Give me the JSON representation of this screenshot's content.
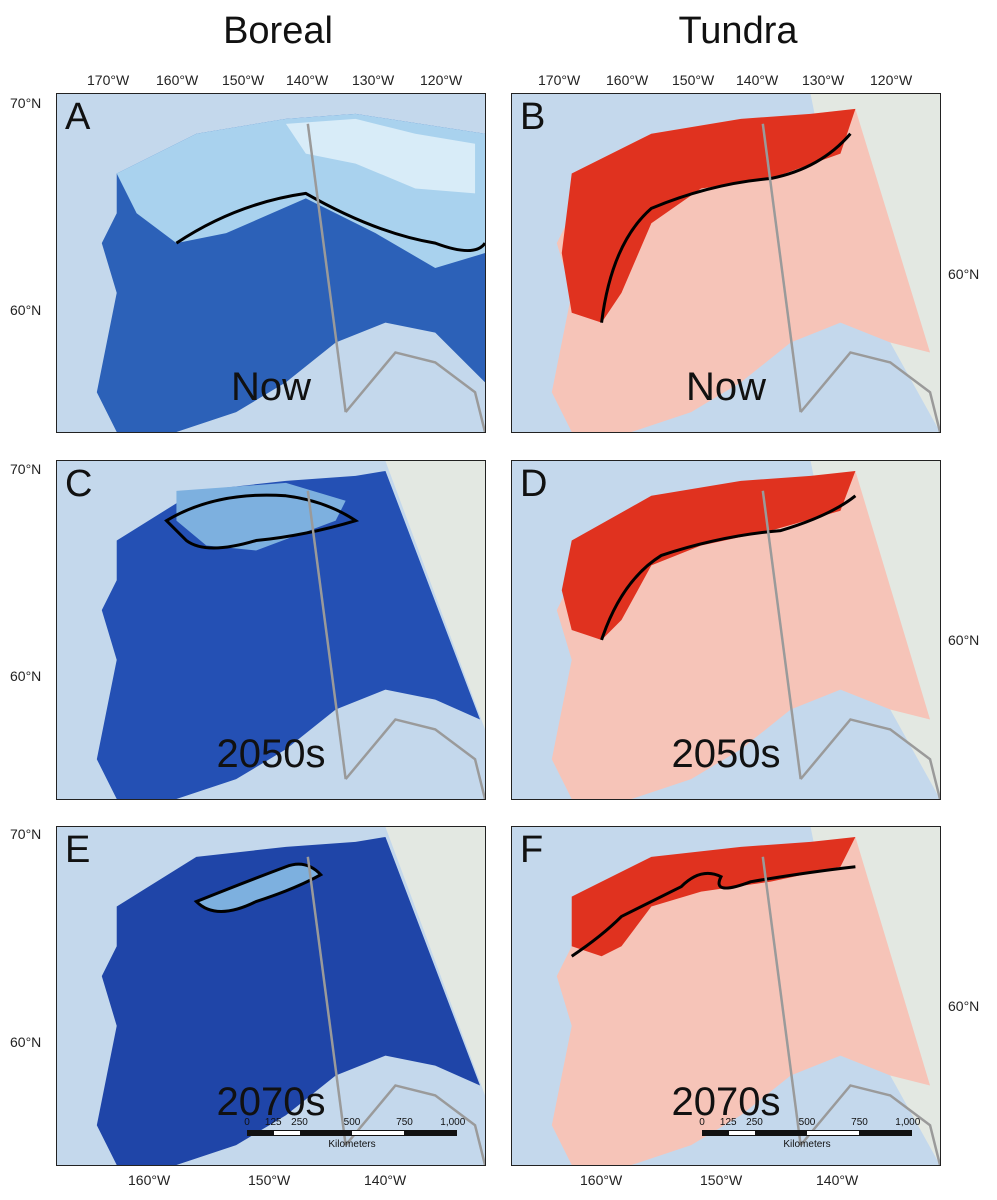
{
  "columns": {
    "boreal": "Boreal",
    "tundra": "Tundra"
  },
  "panels": {
    "A": {
      "letter": "A",
      "period": "Now"
    },
    "B": {
      "letter": "B",
      "period": "Now"
    },
    "C": {
      "letter": "C",
      "period": "2050s"
    },
    "D": {
      "letter": "D",
      "period": "2050s"
    },
    "E": {
      "letter": "E",
      "period": "2070s"
    },
    "F": {
      "letter": "F",
      "period": "2070s"
    }
  },
  "top_lon_ticks": [
    "170°W",
    "160°W",
    "150°W",
    "140°W",
    "130°W",
    "120°W"
  ],
  "bottom_lon_ticks": [
    "160°W",
    "150°W",
    "140°W"
  ],
  "lat_ticks": {
    "north": "70°N",
    "mid": "60°N"
  },
  "scale": {
    "labels": [
      "0",
      "125",
      "250",
      "500",
      "750",
      "1,000"
    ],
    "unit": "Kilometers"
  },
  "colors": {
    "ocean": "#c4d8ec",
    "land_other": "#e3e8e2",
    "boreal_dark": "#1f4fae",
    "boreal_light": "#bfe0f3",
    "tundra_dark": "#e0321f",
    "tundra_light": "#f6c4b8",
    "range_outline": "#000000",
    "border": "#9a9a9a"
  }
}
